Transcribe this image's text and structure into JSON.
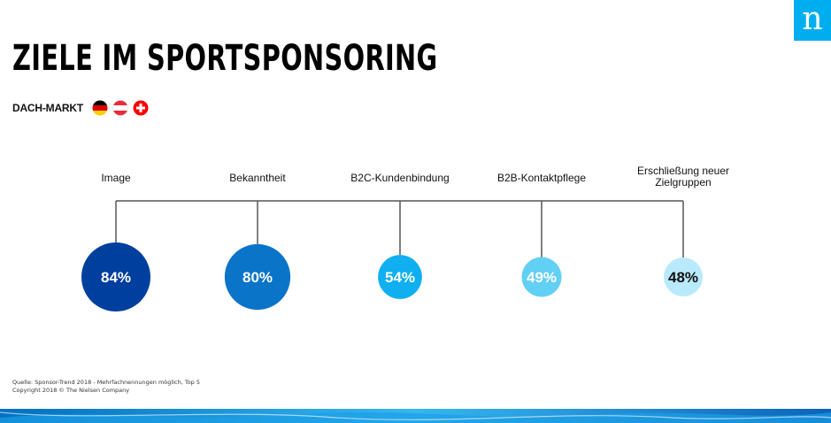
{
  "brand": {
    "logo_letter": "n"
  },
  "page": {
    "title": "ZIELE IM SPORTSPONSORING",
    "market_label": "DACH-MARKT"
  },
  "flags": [
    {
      "icon": "germany-flag-icon"
    },
    {
      "icon": "austria-flag-icon"
    },
    {
      "icon": "switzerland-flag-icon"
    }
  ],
  "goals": [
    {
      "label": [
        "Image"
      ],
      "percent": 84,
      "color": "#003f9e",
      "text_color": "#ffffff"
    },
    {
      "label": [
        "Bekanntheit"
      ],
      "percent": 80,
      "color": "#0a74c8",
      "text_color": "#ffffff"
    },
    {
      "label": [
        "B2C-Kundenbindung"
      ],
      "percent": 54,
      "color": "#10aff0",
      "text_color": "#ffffff"
    },
    {
      "label": [
        "B2B-Kontaktpflege"
      ],
      "percent": 49,
      "color": "#62cff5",
      "text_color": "#ffffff"
    },
    {
      "label": [
        "Erschließung neuer",
        "Zielgruppen"
      ],
      "percent": 48,
      "color": "#b9eafb",
      "text_color": "#111111"
    }
  ],
  "footer": {
    "source": "Quelle: Sponsor-Trend 2018 - Mehrfachnennungen möglich, Top 5",
    "copyright": "Copyright 2018 © The Nielsen Company"
  }
}
